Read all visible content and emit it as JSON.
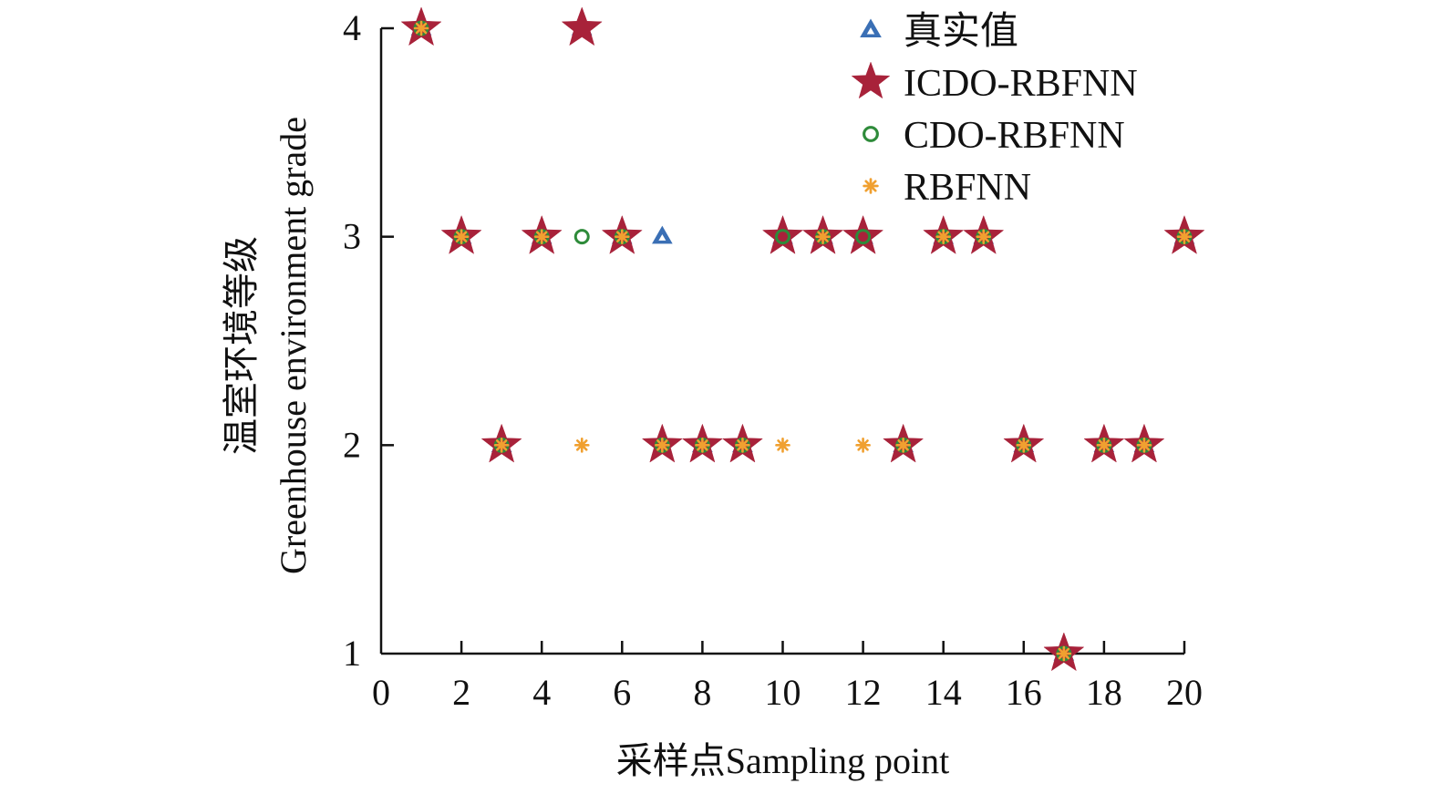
{
  "chart_data": {
    "type": "scatter",
    "title": "",
    "xlabel": "采样点Sampling point",
    "ylabel_line1": "温室环境等级",
    "ylabel_line2": "Greenhouse environment grade",
    "xlim": [
      0,
      20
    ],
    "ylim": [
      1,
      4
    ],
    "x_ticks": [
      0,
      2,
      4,
      6,
      8,
      10,
      12,
      14,
      16,
      18,
      20
    ],
    "y_ticks": [
      1,
      2,
      3,
      4
    ],
    "grid": false,
    "legend_position": "top-right",
    "series": [
      {
        "name": "真实值",
        "marker": "triangle",
        "color": "#3a6fb5",
        "x": [
          1,
          2,
          3,
          4,
          5,
          6,
          7,
          8,
          9,
          10,
          11,
          12,
          13,
          14,
          15,
          16,
          17,
          18,
          19,
          20
        ],
        "y": [
          4,
          3,
          2,
          3,
          4,
          3,
          3,
          2,
          2,
          3,
          3,
          3,
          2,
          3,
          3,
          2,
          1,
          2,
          2,
          3
        ]
      },
      {
        "name": "ICDO-RBFNN",
        "marker": "star",
        "color": "#a8223a",
        "x": [
          1,
          2,
          3,
          4,
          5,
          6,
          7,
          8,
          9,
          10,
          11,
          12,
          13,
          14,
          15,
          16,
          17,
          18,
          19,
          20
        ],
        "y": [
          4,
          3,
          2,
          3,
          4,
          3,
          2,
          2,
          2,
          3,
          3,
          3,
          2,
          3,
          3,
          2,
          1,
          2,
          2,
          3
        ]
      },
      {
        "name": "CDO-RBFNN",
        "marker": "circle",
        "color": "#2e8b3a",
        "x": [
          1,
          2,
          3,
          4,
          5,
          6,
          7,
          8,
          9,
          10,
          11,
          12,
          13,
          14,
          15,
          16,
          17,
          18,
          19,
          20
        ],
        "y": [
          4,
          3,
          2,
          3,
          3,
          3,
          2,
          2,
          2,
          3,
          3,
          3,
          2,
          3,
          3,
          2,
          1,
          2,
          2,
          3
        ]
      },
      {
        "name": "RBFNN",
        "marker": "asterisk",
        "color": "#f0a030",
        "x": [
          1,
          2,
          3,
          4,
          5,
          6,
          7,
          8,
          9,
          10,
          11,
          12,
          13,
          14,
          15,
          16,
          17,
          18,
          19,
          20
        ],
        "y": [
          4,
          3,
          2,
          3,
          2,
          3,
          2,
          2,
          2,
          2,
          3,
          2,
          2,
          3,
          3,
          2,
          1,
          2,
          2,
          3
        ]
      }
    ]
  }
}
